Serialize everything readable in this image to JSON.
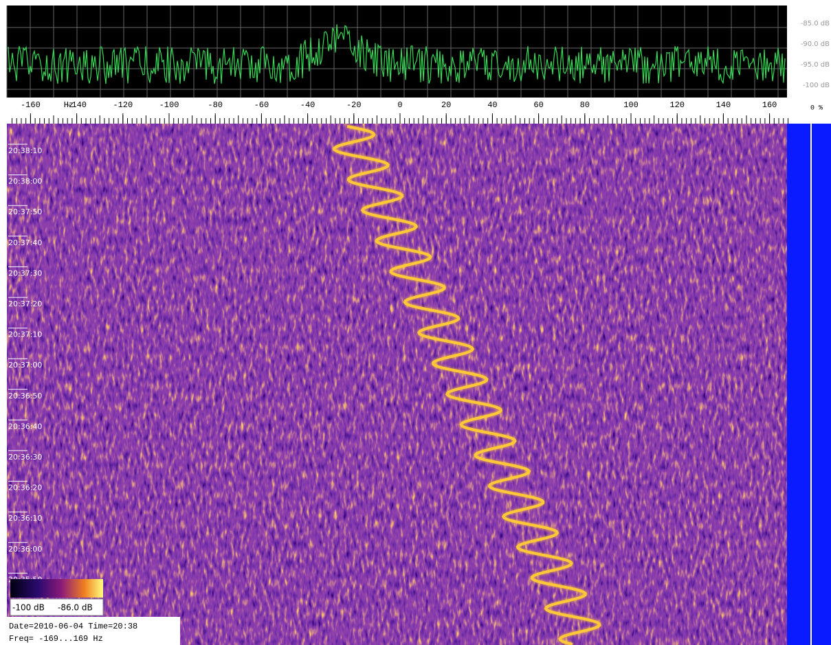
{
  "spectrum": {
    "db_ticks": [
      {
        "value": -85,
        "label": "-85.0 dB"
      },
      {
        "value": -90,
        "label": "-90.0 dB"
      },
      {
        "value": -95,
        "label": "-95.0 dB"
      },
      {
        "value": -100,
        "label": "-100 dB"
      }
    ]
  },
  "freq_axis": {
    "unit": "Hz",
    "ticks": [
      -160,
      -140,
      -120,
      -100,
      -80,
      -60,
      -40,
      -20,
      0,
      20,
      40,
      60,
      80,
      100,
      120,
      140,
      160
    ]
  },
  "percent_label": "0 %",
  "time_labels": [
    "20:38:10",
    "20:38:00",
    "20:37:50",
    "20:37:40",
    "20:37:30",
    "20:37:20",
    "20:37:10",
    "20:37:00",
    "20:36:50",
    "20:36:40",
    "20:36:30",
    "20:36:20",
    "20:36:10",
    "20:36:00",
    "20:35:50"
  ],
  "legend": {
    "min_label": "-100 dB",
    "max_label": "-86.0 dB"
  },
  "info": {
    "date_line": "Date=2010-06-04 Time=20:38",
    "freq_line": "Freq= -169...169 Hz"
  }
}
